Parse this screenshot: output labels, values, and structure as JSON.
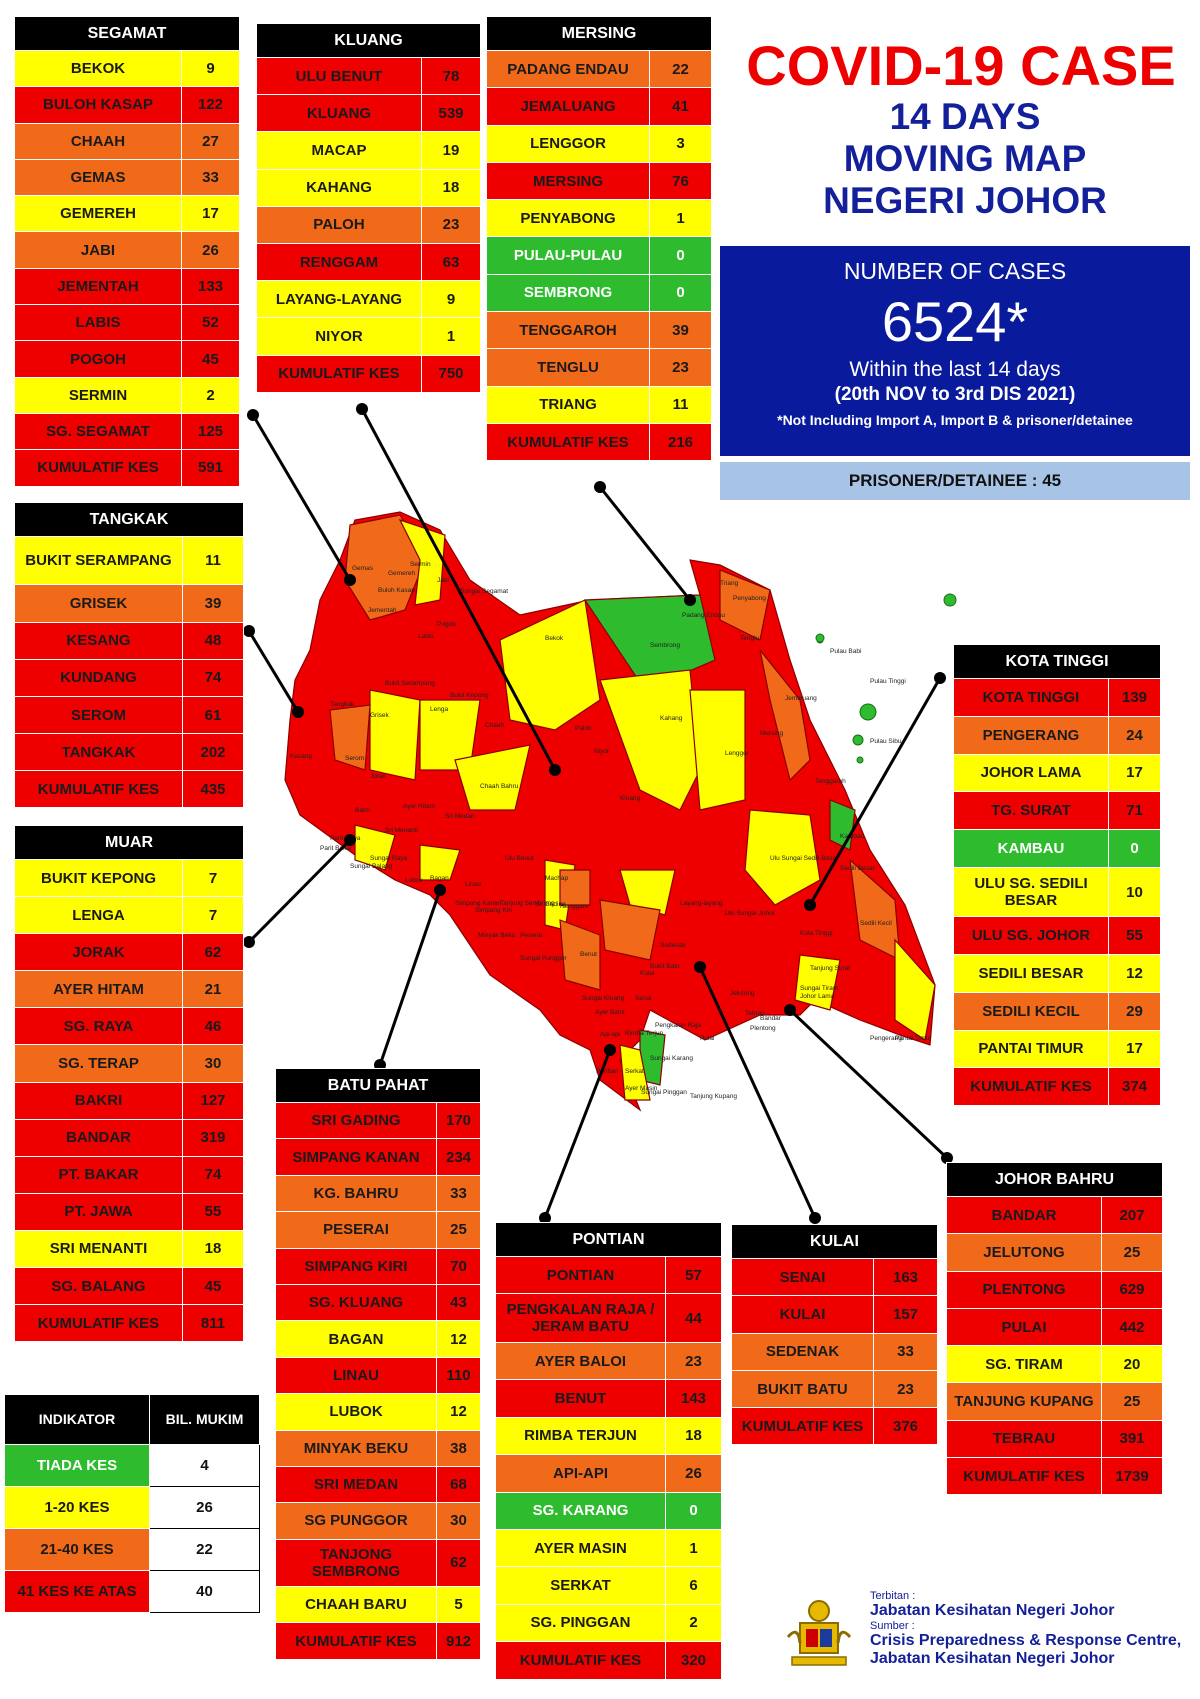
{
  "title": {
    "main": "COVID-19 CASE",
    "sub_lines": [
      "14 DAYS",
      "MOVING MAP",
      "NEGERI JOHOR"
    ]
  },
  "summary": {
    "label": "NUMBER OF CASES",
    "total": "6524*",
    "within": "Within the last 14 days",
    "range": "(20th NOV to 3rd DIS 2021)",
    "note": "*Not Including Import A, Import B & prisoner/detainee",
    "prisoner": "PRISONER/DETAINEE : 45"
  },
  "colors": {
    "red": "#ee0000",
    "orange": "#f06a1a",
    "yellow": "#ffff00",
    "green": "#2ebc2e",
    "header": "#000000",
    "navy": "#0a1a9c"
  },
  "districts": [
    {
      "key": "segamat",
      "name": "SEGAMAT",
      "rows": [
        [
          "BEKOK",
          "9",
          "y"
        ],
        [
          "BULOH KASAP",
          "122",
          "r"
        ],
        [
          "CHAAH",
          "27",
          "o"
        ],
        [
          "GEMAS",
          "33",
          "o"
        ],
        [
          "GEMEREH",
          "17",
          "y"
        ],
        [
          "JABI",
          "26",
          "o"
        ],
        [
          "JEMENTAH",
          "133",
          "r"
        ],
        [
          "LABIS",
          "52",
          "r"
        ],
        [
          "POGOH",
          "45",
          "r"
        ],
        [
          "SERMIN",
          "2",
          "y"
        ],
        [
          "SG. SEGAMAT",
          "125",
          "r"
        ],
        [
          "KUMULATIF KES",
          "591",
          "r"
        ]
      ]
    },
    {
      "key": "kluang",
      "name": "KLUANG",
      "rows": [
        [
          "ULU BENUT",
          "78",
          "r"
        ],
        [
          "KLUANG",
          "539",
          "r"
        ],
        [
          "MACAP",
          "19",
          "y"
        ],
        [
          "KAHANG",
          "18",
          "y"
        ],
        [
          "PALOH",
          "23",
          "o"
        ],
        [
          "RENGGAM",
          "63",
          "r"
        ],
        [
          "LAYANG-LAYANG",
          "9",
          "y"
        ],
        [
          "NIYOR",
          "1",
          "y"
        ],
        [
          "KUMULATIF KES",
          "750",
          "r"
        ]
      ]
    },
    {
      "key": "mersing",
      "name": "MERSING",
      "rows": [
        [
          "PADANG ENDAU",
          "22",
          "o"
        ],
        [
          "JEMALUANG",
          "41",
          "r"
        ],
        [
          "LENGGOR",
          "3",
          "y"
        ],
        [
          "MERSING",
          "76",
          "r"
        ],
        [
          "PENYABONG",
          "1",
          "y"
        ],
        [
          "PULAU-PULAU",
          "0",
          "g"
        ],
        [
          "SEMBRONG",
          "0",
          "g"
        ],
        [
          "TENGGAROH",
          "39",
          "o"
        ],
        [
          "TENGLU",
          "23",
          "o"
        ],
        [
          "TRIANG",
          "11",
          "y"
        ],
        [
          "KUMULATIF KES",
          "216",
          "r"
        ]
      ]
    },
    {
      "key": "tangkak",
      "name": "TANGKAK",
      "rows": [
        [
          "BUKIT SERAMPANG",
          "11",
          "y"
        ],
        [
          "GRISEK",
          "39",
          "o"
        ],
        [
          "KESANG",
          "48",
          "r"
        ],
        [
          "KUNDANG",
          "74",
          "r"
        ],
        [
          "SEROM",
          "61",
          "r"
        ],
        [
          "TANGKAK",
          "202",
          "r"
        ],
        [
          "KUMULATIF KES",
          "435",
          "r"
        ]
      ]
    },
    {
      "key": "muar",
      "name": "MUAR",
      "rows": [
        [
          "BUKIT KEPONG",
          "7",
          "y"
        ],
        [
          "LENGA",
          "7",
          "y"
        ],
        [
          "JORAK",
          "62",
          "r"
        ],
        [
          "AYER HITAM",
          "21",
          "o"
        ],
        [
          "SG. RAYA",
          "46",
          "r"
        ],
        [
          "SG. TERAP",
          "30",
          "o"
        ],
        [
          "BAKRI",
          "127",
          "r"
        ],
        [
          "BANDAR",
          "319",
          "r"
        ],
        [
          "PT. BAKAR",
          "74",
          "r"
        ],
        [
          "PT. JAWA",
          "55",
          "r"
        ],
        [
          "SRI MENANTI",
          "18",
          "y"
        ],
        [
          "SG. BALANG",
          "45",
          "r"
        ],
        [
          "KUMULATIF KES",
          "811",
          "r"
        ]
      ]
    },
    {
      "key": "batu_pahat",
      "name": "BATU PAHAT",
      "rows": [
        [
          "SRI GADING",
          "170",
          "r"
        ],
        [
          "SIMPANG KANAN",
          "234",
          "r"
        ],
        [
          "KG. BAHRU",
          "33",
          "o"
        ],
        [
          "PESERAI",
          "25",
          "o"
        ],
        [
          "SIMPANG KIRI",
          "70",
          "r"
        ],
        [
          "SG. KLUANG",
          "43",
          "r"
        ],
        [
          "BAGAN",
          "12",
          "y"
        ],
        [
          "LINAU",
          "110",
          "r"
        ],
        [
          "LUBOK",
          "12",
          "y"
        ],
        [
          "MINYAK BEKU",
          "38",
          "o"
        ],
        [
          "SRI MEDAN",
          "68",
          "r"
        ],
        [
          "SG PUNGGOR",
          "30",
          "o"
        ],
        [
          "TANJONG SEMBRONG",
          "62",
          "r"
        ],
        [
          "CHAAH BARU",
          "5",
          "y"
        ],
        [
          "KUMULATIF KES",
          "912",
          "r"
        ]
      ]
    },
    {
      "key": "pontian",
      "name": "PONTIAN",
      "rows": [
        [
          "PONTIAN",
          "57",
          "r"
        ],
        [
          "PENGKALAN RAJA / JERAM BATU",
          "44",
          "r"
        ],
        [
          "AYER BALOI",
          "23",
          "o"
        ],
        [
          "BENUT",
          "143",
          "r"
        ],
        [
          "RIMBA TERJUN",
          "18",
          "y"
        ],
        [
          "API-API",
          "26",
          "o"
        ],
        [
          "SG. KARANG",
          "0",
          "g"
        ],
        [
          "AYER MASIN",
          "1",
          "y"
        ],
        [
          "SERKAT",
          "6",
          "y"
        ],
        [
          "SG. PINGGAN",
          "2",
          "y"
        ],
        [
          "KUMULATIF KES",
          "320",
          "r"
        ]
      ]
    },
    {
      "key": "kulai",
      "name": "KULAI",
      "rows": [
        [
          "SENAI",
          "163",
          "r"
        ],
        [
          "KULAI",
          "157",
          "r"
        ],
        [
          "SEDENAK",
          "33",
          "o"
        ],
        [
          "BUKIT BATU",
          "23",
          "o"
        ],
        [
          "KUMULATIF KES",
          "376",
          "r"
        ]
      ]
    },
    {
      "key": "kota_tinggi",
      "name": "KOTA TINGGI",
      "rows": [
        [
          "KOTA TINGGI",
          "139",
          "r"
        ],
        [
          "PENGERANG",
          "24",
          "o"
        ],
        [
          "JOHOR LAMA",
          "17",
          "y"
        ],
        [
          "TG. SURAT",
          "71",
          "r"
        ],
        [
          "KAMBAU",
          "0",
          "g"
        ],
        [
          "ULU SG. SEDILI BESAR",
          "10",
          "y"
        ],
        [
          "ULU  SG. JOHOR",
          "55",
          "r"
        ],
        [
          "SEDILI BESAR",
          "12",
          "y"
        ],
        [
          "SEDILI KECIL",
          "29",
          "o"
        ],
        [
          "PANTAI TIMUR",
          "17",
          "y"
        ],
        [
          "KUMULATIF KES",
          "374",
          "r"
        ]
      ]
    },
    {
      "key": "johor_bahru",
      "name": "JOHOR BAHRU",
      "rows": [
        [
          "BANDAR",
          "207",
          "r"
        ],
        [
          "JELUTONG",
          "25",
          "o"
        ],
        [
          "PLENTONG",
          "629",
          "r"
        ],
        [
          "PULAI",
          "442",
          "r"
        ],
        [
          "SG. TIRAM",
          "20",
          "y"
        ],
        [
          "TANJUNG KUPANG",
          "25",
          "o"
        ],
        [
          "TEBRAU",
          "391",
          "r"
        ],
        [
          "KUMULATIF KES",
          "1739",
          "r"
        ]
      ]
    }
  ],
  "legend": {
    "headers": [
      "INDIKATOR",
      "BIL. MUKIM"
    ],
    "rows": [
      [
        "TIADA KES",
        "4",
        "g"
      ],
      [
        "1-20 KES",
        "26",
        "y"
      ],
      [
        "21-40 KES",
        "22",
        "o"
      ],
      [
        "41 KES KE ATAS",
        "40",
        "r"
      ]
    ]
  },
  "map_labels": [
    "Gemas",
    "Buloh Kasap",
    "Sermin",
    "Jabi",
    "Gemereh",
    "Sungai Segamat",
    "Jementah",
    "Pogoh",
    "Labis",
    "Bekok",
    "Sembrong",
    "Padang Endau",
    "Triang",
    "Penyabong",
    "Tenglu",
    "Pulau Babi",
    "Pulau Tinggi",
    "Pulau Sibu",
    "Jemaluang",
    "Mersing",
    "Tenggaroh",
    "Lenggor",
    "Kahang",
    "Paloh",
    "Niyor",
    "Kluang",
    "Chaah",
    "Chaah Bahru",
    "Bukit Serampang",
    "Bukit Kepong",
    "Lenga",
    "Grisek",
    "Tangkak",
    "Serom",
    "Kesang",
    "Jorak",
    "Sri Menanti",
    "Ayer Hitam",
    "Sri Medan",
    "Bakri",
    "Parit Bakar",
    "Parit Jawa",
    "Sungai Balang",
    "Sungai Raya",
    "Lubok",
    "Bagan",
    "Linau",
    "Tanjung Sembrong",
    "Renggam",
    "Machap",
    "Ulu Benut",
    "Sri Gading",
    "Simpang Kanan",
    "Simpang Kiri",
    "Minyak Beku",
    "Peserai",
    "Sungai Punggor",
    "Sungai Kluang",
    "Benut",
    "Layang-layang",
    "Sedenak",
    "Bukit Batu",
    "Kulai",
    "Senai",
    "Pengkalan Raja",
    "Ayer Baloi",
    "Api-api",
    "Pontian",
    "Rimba Terjun",
    "Sungai Karang",
    "Ayer Masin",
    "Serkat",
    "Sungai Pinggan",
    "Tanjung Kupang",
    "Pulai",
    "Tebrau",
    "Plentong",
    "Bandar",
    "Jelutong",
    "Sungai Tiram",
    "Ulu Sungai Johor",
    "Ulu Sungai Sedili Besar",
    "Kambau",
    "Sedili Besar",
    "Sedili Kecil",
    "Kota Tinggi",
    "Johor Lama",
    "Tanjung Surat",
    "Pengerang",
    "Pantai Timur"
  ],
  "footer": {
    "published_label": "Terbitan :",
    "published_by": "Jabatan Kesihatan Negeri Johor",
    "source_label": "Sumber :",
    "source_lines": [
      "Crisis Preparedness & Response Centre,",
      "Jabatan Kesihatan Negeri Johor"
    ]
  }
}
